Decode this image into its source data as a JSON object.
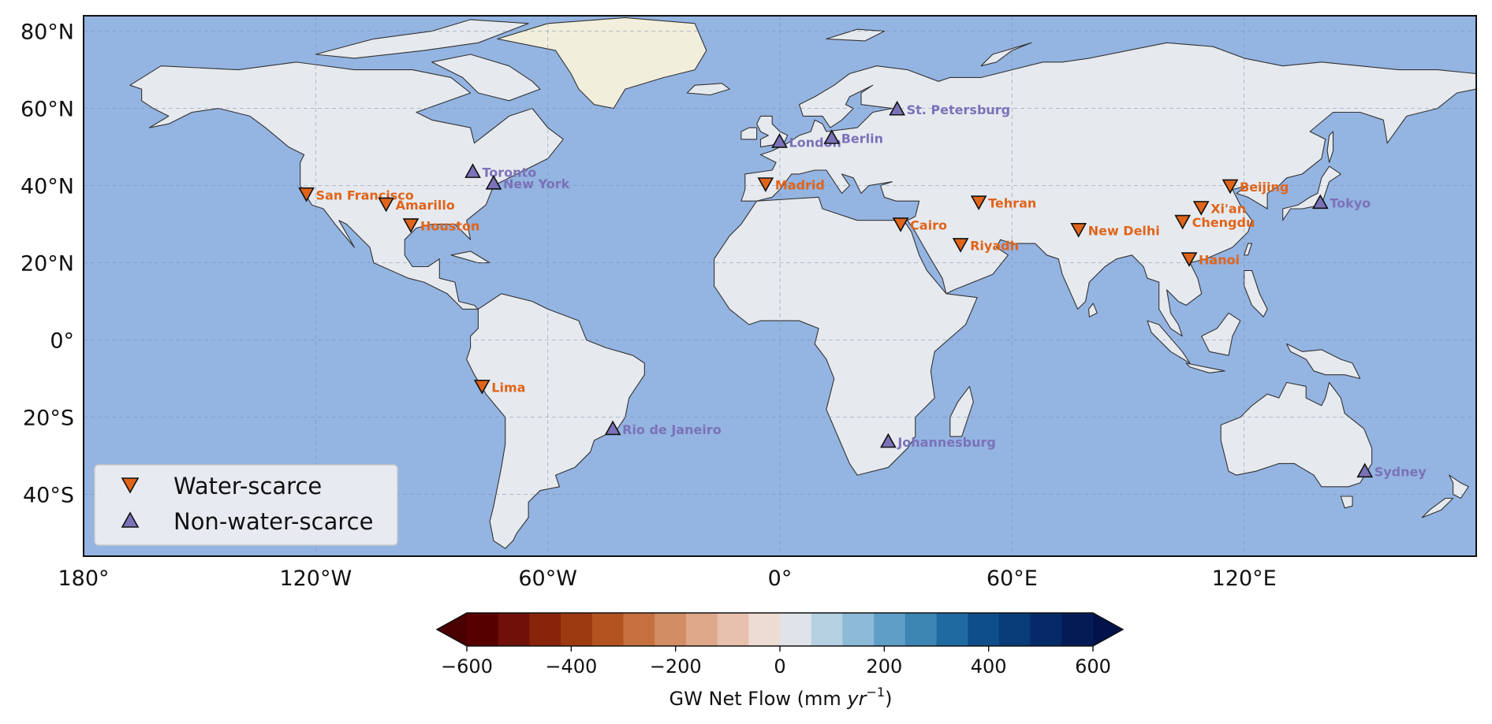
{
  "map": {
    "projection": "PlateCarree",
    "lon_range": [
      -180,
      180
    ],
    "lat_range": [
      -56,
      84
    ],
    "colors": {
      "ocean": "#94b4e2",
      "land": "#e6eaef",
      "greenland": "#f1efdc",
      "border": "#333333",
      "grid": "#7b8ea8"
    },
    "lat_ticks": [
      {
        "value": 80,
        "label": "80°N"
      },
      {
        "value": 60,
        "label": "60°N"
      },
      {
        "value": 40,
        "label": "40°N"
      },
      {
        "value": 20,
        "label": "20°N"
      },
      {
        "value": 0,
        "label": "0°"
      },
      {
        "value": -20,
        "label": "20°S"
      },
      {
        "value": -40,
        "label": "40°S"
      }
    ],
    "lon_ticks": [
      {
        "value": -180,
        "label": "180°"
      },
      {
        "value": -120,
        "label": "120°W"
      },
      {
        "value": -60,
        "label": "60°W"
      },
      {
        "value": 0,
        "label": "0°"
      },
      {
        "value": 60,
        "label": "60°E"
      },
      {
        "value": 120,
        "label": "120°E"
      }
    ]
  },
  "legend": {
    "items": [
      {
        "label": "Water-scarce",
        "marker": "triangle-down",
        "color": "#e0641a"
      },
      {
        "label": "Non-water-scarce",
        "marker": "triangle-up",
        "color": "#7b72b8"
      }
    ]
  },
  "cities": [
    {
      "name": "San Francisco",
      "lon": -122.4,
      "lat": 37.8,
      "group": "water-scarce"
    },
    {
      "name": "Amarillo",
      "lon": -101.8,
      "lat": 35.2,
      "group": "water-scarce"
    },
    {
      "name": "Houston",
      "lon": -95.4,
      "lat": 29.8,
      "group": "water-scarce"
    },
    {
      "name": "Toronto",
      "lon": -79.4,
      "lat": 43.7,
      "group": "non-water-scarce"
    },
    {
      "name": "New York",
      "lon": -74.0,
      "lat": 40.7,
      "group": "non-water-scarce"
    },
    {
      "name": "Lima",
      "lon": -77.0,
      "lat": -12.0,
      "group": "water-scarce"
    },
    {
      "name": "Rio de Janeiro",
      "lon": -43.2,
      "lat": -22.9,
      "group": "non-water-scarce"
    },
    {
      "name": "Madrid",
      "lon": -3.7,
      "lat": 40.4,
      "group": "water-scarce"
    },
    {
      "name": "London",
      "lon": -0.1,
      "lat": 51.5,
      "group": "non-water-scarce"
    },
    {
      "name": "Berlin",
      "lon": 13.4,
      "lat": 52.5,
      "group": "non-water-scarce"
    },
    {
      "name": "St. Petersburg",
      "lon": 30.3,
      "lat": 59.9,
      "group": "non-water-scarce"
    },
    {
      "name": "Cairo",
      "lon": 31.2,
      "lat": 30.0,
      "group": "water-scarce"
    },
    {
      "name": "Riyadh",
      "lon": 46.7,
      "lat": 24.7,
      "group": "water-scarce"
    },
    {
      "name": "Tehran",
      "lon": 51.4,
      "lat": 35.7,
      "group": "water-scarce"
    },
    {
      "name": "Johannesburg",
      "lon": 28.0,
      "lat": -26.2,
      "group": "non-water-scarce"
    },
    {
      "name": "New Delhi",
      "lon": 77.2,
      "lat": 28.6,
      "group": "water-scarce"
    },
    {
      "name": "Chengdu",
      "lon": 104.1,
      "lat": 30.7,
      "group": "water-scarce"
    },
    {
      "name": "Xi'an",
      "lon": 108.9,
      "lat": 34.3,
      "group": "water-scarce"
    },
    {
      "name": "Beijing",
      "lon": 116.4,
      "lat": 39.9,
      "group": "water-scarce"
    },
    {
      "name": "Hanoi",
      "lon": 105.8,
      "lat": 21.0,
      "group": "water-scarce"
    },
    {
      "name": "Tokyo",
      "lon": 139.7,
      "lat": 35.7,
      "group": "non-water-scarce"
    },
    {
      "name": "Sydney",
      "lon": 151.2,
      "lat": -33.9,
      "group": "non-water-scarce"
    }
  ],
  "colorbar": {
    "min": -600,
    "max": 600,
    "step": 60,
    "extend": "both",
    "ticks": [
      {
        "value": -600,
        "label": "−600"
      },
      {
        "value": -400,
        "label": "−400"
      },
      {
        "value": -200,
        "label": "−200"
      },
      {
        "value": 0,
        "label": "0"
      },
      {
        "value": 200,
        "label": "200"
      },
      {
        "value": 400,
        "label": "400"
      },
      {
        "value": 600,
        "label": "600"
      }
    ],
    "bin_colors": [
      "#570000",
      "#701008",
      "#88240a",
      "#9d3a10",
      "#b35320",
      "#c67040",
      "#d38d64",
      "#dfa88a",
      "#e7c1ad",
      "#eddcd2",
      "#e0e4ea",
      "#b5d1e2",
      "#8dbad7",
      "#5f9ec6",
      "#3d85b3",
      "#1f6aa0",
      "#0e4f8b",
      "#073c78",
      "#062a68",
      "#041b56"
    ],
    "extend_min_color": "#4a0000",
    "extend_max_color": "#02124a",
    "label_main": "GW Net Flow (mm ",
    "label_unit": "yr",
    "label_exp": "−1",
    "label_end": ")"
  }
}
